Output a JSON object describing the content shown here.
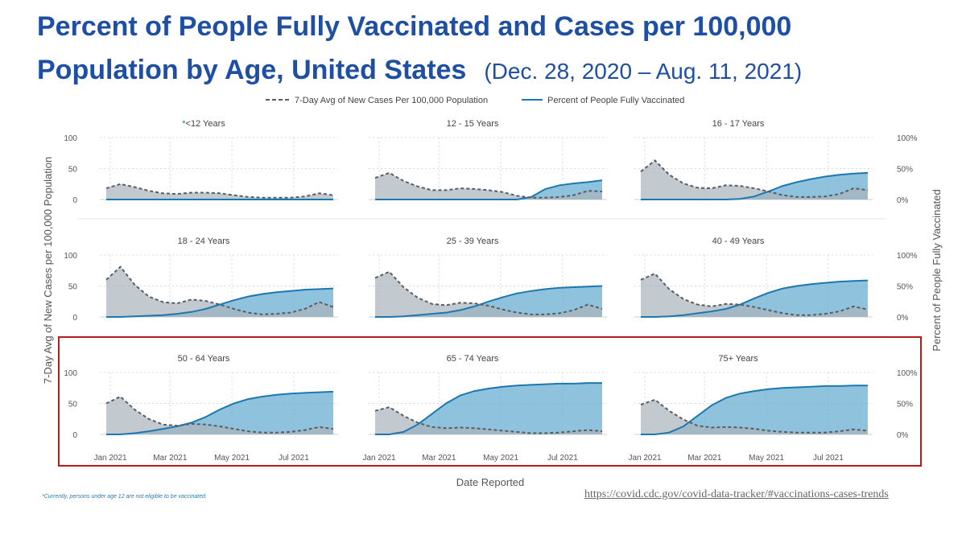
{
  "title": {
    "line1": "Percent of People Fully Vaccinated and Cases per 100,000",
    "line2": "Population by Age, United States",
    "date_range": "(Dec. 28, 2020 – Aug. 11, 2021)"
  },
  "footnote": "*Currently, persons under age 12 are not eligible to be vaccinated.",
  "source_url": "https://covid.cdc.gov/covid-data-tracker/#vaccinations-cases-trends",
  "colors": {
    "cases_line": "#555e66",
    "cases_fill": "#a9b4ba",
    "vax_line": "#1b78b0",
    "vax_fill": "#6aaed1",
    "highlight_box": "#b71c1c",
    "grid": "#d9d9d9"
  },
  "chart_data": {
    "type": "area",
    "legend": {
      "position": "top",
      "items": [
        {
          "label": "7-Day Avg of New Cases Per 100,000 Population",
          "style": "dashed"
        },
        {
          "label": "Percent of People Fully Vaccinated",
          "style": "solid"
        }
      ]
    },
    "ylabel_left": "7-Day Avg of New Cases per 100,000 Population",
    "ylabel_right": "Percent of People Fully Vaccinated",
    "xlabel": "Date Reported",
    "x_ticks": [
      "Jan 2021",
      "Mar 2021",
      "May 2021",
      "Jul 2021"
    ],
    "y_left_ticks": [
      "100",
      "50",
      "0"
    ],
    "y_right_ticks": [
      "100%",
      "50%",
      "0%"
    ],
    "ylim_cases": [
      0,
      100
    ],
    "ylim_vaccinated": [
      0,
      100
    ],
    "x": [
      "2020-12-28",
      "2021-01-11",
      "2021-01-25",
      "2021-02-08",
      "2021-02-22",
      "2021-03-08",
      "2021-03-22",
      "2021-04-05",
      "2021-04-19",
      "2021-05-03",
      "2021-05-17",
      "2021-05-31",
      "2021-06-14",
      "2021-06-28",
      "2021-07-12",
      "2021-07-26",
      "2021-08-09"
    ],
    "highlighted_groups": [
      "50 - 64 Years",
      "65 - 74 Years",
      "75+ Years"
    ],
    "panels": [
      {
        "age_group": "<12 Years",
        "marker": "*",
        "cases": [
          18,
          25,
          20,
          14,
          10,
          9,
          11,
          11,
          10,
          7,
          4,
          3,
          3,
          3,
          5,
          10,
          7
        ],
        "vaccinated": [
          0,
          0,
          0,
          0,
          0,
          0,
          0,
          0,
          0,
          0,
          0,
          0,
          0,
          0,
          0,
          0,
          0
        ]
      },
      {
        "age_group": "12 - 15 Years",
        "marker": "",
        "cases": [
          35,
          43,
          30,
          21,
          15,
          15,
          18,
          17,
          15,
          12,
          6,
          3,
          3,
          4,
          7,
          14,
          13
        ],
        "vaccinated": [
          0,
          0,
          0,
          0,
          0,
          0,
          0,
          0,
          0,
          0,
          0,
          4,
          17,
          23,
          26,
          28,
          31
        ]
      },
      {
        "age_group": "16 - 17 Years",
        "marker": "",
        "cases": [
          45,
          63,
          40,
          26,
          19,
          18,
          23,
          22,
          18,
          13,
          7,
          4,
          4,
          5,
          9,
          18,
          15
        ],
        "vaccinated": [
          0,
          0,
          0,
          0,
          0,
          0,
          0,
          1,
          5,
          13,
          22,
          28,
          33,
          37,
          40,
          42,
          43
        ]
      },
      {
        "age_group": "18 - 24 Years",
        "marker": "",
        "cases": [
          60,
          81,
          52,
          33,
          24,
          22,
          28,
          26,
          20,
          13,
          7,
          4,
          5,
          7,
          13,
          24,
          16
        ],
        "vaccinated": [
          0,
          0,
          1,
          2,
          3,
          5,
          8,
          13,
          20,
          27,
          33,
          37,
          40,
          42,
          44,
          45,
          46
        ]
      },
      {
        "age_group": "25 - 39 Years",
        "marker": "",
        "cases": [
          63,
          73,
          48,
          31,
          21,
          19,
          23,
          22,
          18,
          12,
          7,
          4,
          4,
          6,
          11,
          20,
          13
        ],
        "vaccinated": [
          0,
          0,
          1,
          3,
          5,
          7,
          11,
          17,
          25,
          32,
          38,
          42,
          45,
          47,
          48,
          49,
          50
        ]
      },
      {
        "age_group": "40 - 49 Years",
        "marker": "",
        "cases": [
          60,
          70,
          45,
          29,
          20,
          17,
          21,
          20,
          16,
          11,
          6,
          3,
          3,
          5,
          9,
          17,
          12
        ],
        "vaccinated": [
          0,
          0,
          1,
          3,
          6,
          9,
          13,
          20,
          30,
          39,
          46,
          50,
          53,
          55,
          57,
          58,
          59
        ]
      },
      {
        "age_group": "50 - 64 Years",
        "marker": "",
        "cases": [
          50,
          61,
          40,
          25,
          16,
          14,
          17,
          16,
          13,
          9,
          5,
          3,
          3,
          4,
          7,
          12,
          9
        ],
        "vaccinated": [
          0,
          0,
          2,
          5,
          9,
          13,
          19,
          28,
          40,
          50,
          57,
          61,
          64,
          66,
          67,
          68,
          69
        ]
      },
      {
        "age_group": "65 - 74 Years",
        "marker": "",
        "cases": [
          38,
          44,
          30,
          19,
          12,
          10,
          11,
          10,
          8,
          6,
          4,
          2,
          2,
          3,
          5,
          7,
          5
        ],
        "vaccinated": [
          0,
          0,
          4,
          16,
          33,
          50,
          63,
          70,
          74,
          77,
          79,
          80,
          81,
          82,
          82,
          83,
          83
        ]
      },
      {
        "age_group": "75+ Years",
        "marker": "",
        "cases": [
          48,
          56,
          38,
          24,
          14,
          11,
          12,
          11,
          9,
          6,
          4,
          3,
          3,
          3,
          5,
          8,
          6
        ],
        "vaccinated": [
          0,
          0,
          3,
          13,
          30,
          47,
          59,
          66,
          70,
          73,
          75,
          76,
          77,
          78,
          78,
          79,
          79
        ]
      }
    ]
  }
}
